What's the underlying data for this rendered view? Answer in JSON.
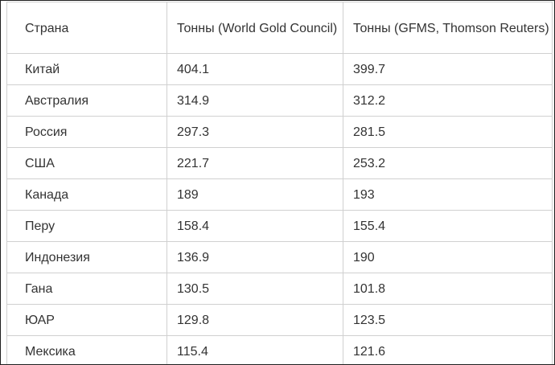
{
  "table": {
    "headers": [
      "Страна",
      "Тонны (World Gold Council)",
      "Тонны (GFMS, Thomson Reuters)"
    ],
    "rows": [
      [
        "Китай",
        "404.1",
        "399.7"
      ],
      [
        "Австралия",
        "314.9",
        "312.2"
      ],
      [
        "Россия",
        "297.3",
        "281.5"
      ],
      [
        "США",
        "221.7",
        "253.2"
      ],
      [
        "Канада",
        "189",
        "193"
      ],
      [
        "Перу",
        "158.4",
        "155.4"
      ],
      [
        "Индонезия",
        "136.9",
        "190"
      ],
      [
        "Гана",
        "130.5",
        "101.8"
      ],
      [
        "ЮАР",
        "129.8",
        "123.5"
      ],
      [
        "Мексика",
        "115.4",
        "121.6"
      ]
    ]
  }
}
